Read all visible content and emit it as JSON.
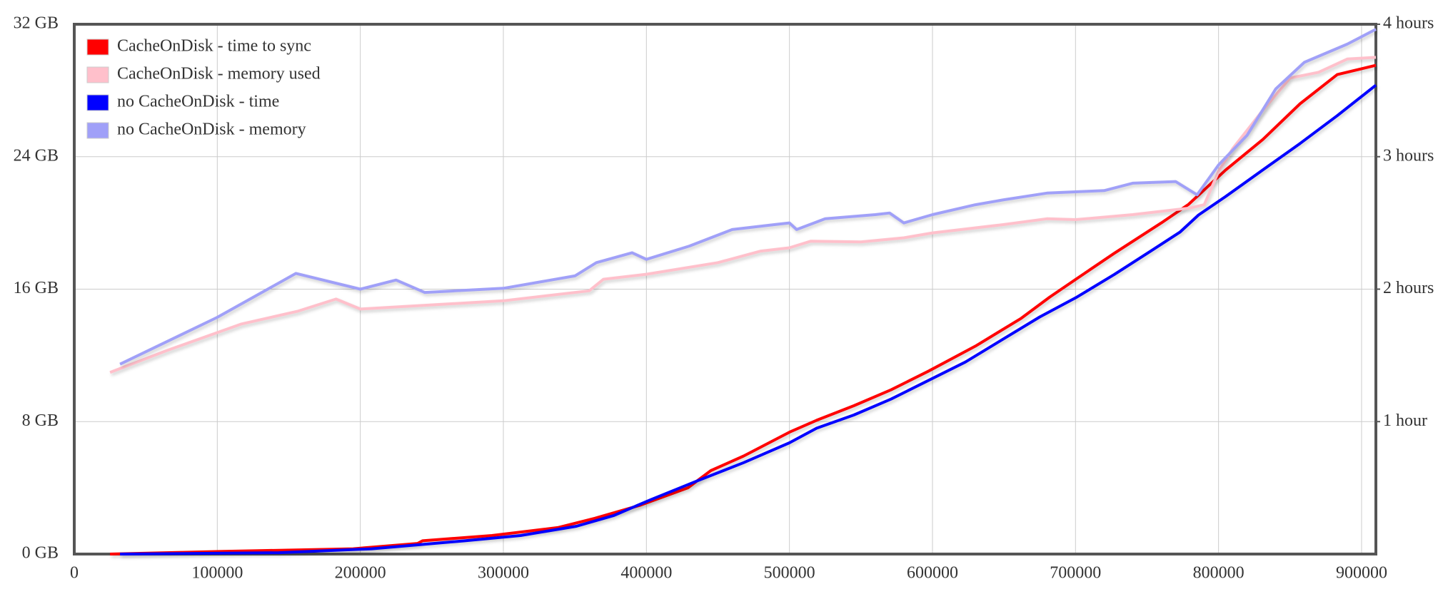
{
  "chart_data": {
    "type": "line",
    "xlim": [
      0,
      910000
    ],
    "xticks": [
      0,
      100000,
      200000,
      300000,
      400000,
      500000,
      600000,
      700000,
      800000,
      900000
    ],
    "ylim": [
      0,
      32
    ],
    "yticks": [
      {
        "value": 0,
        "label": "0 GB"
      },
      {
        "value": 8,
        "label": "8 GB"
      },
      {
        "value": 16,
        "label": "16 GB"
      },
      {
        "value": 24,
        "label": "24 GB"
      },
      {
        "value": 32,
        "label": "32 GB"
      }
    ],
    "y2lim": [
      0,
      4
    ],
    "y2ticks": [
      {
        "value": 1,
        "label": "1 hour"
      },
      {
        "value": 2,
        "label": "2 hours"
      },
      {
        "value": 3,
        "label": "3 hours"
      },
      {
        "value": 4,
        "label": "4 hours"
      }
    ],
    "grid": true,
    "legend": "upper-left",
    "series": [
      {
        "name": "CacheOnDisk - time to sync",
        "color": "#ff0000",
        "axis": "y2",
        "x": [
          25000,
          104000,
          195000,
          240000,
          243500,
          292000,
          338000,
          364000,
          396000,
          429000,
          445000,
          468000,
          500000,
          519000,
          545000,
          571000,
          597000,
          630000,
          662000,
          682000,
          701000,
          727000,
          760000,
          779000,
          805000,
          831000,
          857000,
          883000,
          910000
        ],
        "values": [
          0,
          0.02,
          0.04,
          0.08,
          0.1,
          0.14,
          0.2,
          0.27,
          0.37,
          0.5,
          0.63,
          0.74,
          0.92,
          1.01,
          1.12,
          1.24,
          1.38,
          1.57,
          1.78,
          1.94,
          2.08,
          2.27,
          2.5,
          2.64,
          2.9,
          3.13,
          3.4,
          3.62,
          3.69
        ]
      },
      {
        "name": "CacheOnDisk - memory used",
        "color": "#ffc0cb",
        "x": [
          25000,
          65000,
          117000,
          156000,
          183000,
          200000,
          300000,
          360000,
          370000,
          400000,
          450000,
          480000,
          500000,
          515000,
          550000,
          580000,
          600000,
          650000,
          680000,
          700000,
          740000,
          780000,
          790000,
          800000,
          810000,
          830000,
          850000,
          870000,
          890000,
          910000
        ],
        "values": [
          10.97,
          12.3,
          13.9,
          14.66,
          15.4,
          14.8,
          15.3,
          15.9,
          16.6,
          16.9,
          17.6,
          18.3,
          18.5,
          18.9,
          18.85,
          19.1,
          19.4,
          19.9,
          20.25,
          20.2,
          20.5,
          20.9,
          21.1,
          23.1,
          24.5,
          26.7,
          28.75,
          29.1,
          29.9,
          30.0
        ]
      },
      {
        "name": "no CacheOnDisk - time",
        "color": "#0000ff",
        "axis": "y2",
        "x": [
          32000,
          143000,
          208000,
          273000,
          312000,
          351000,
          377000,
          403000,
          435000,
          468000,
          500000,
          519000,
          545000,
          571000,
          597000,
          623000,
          649000,
          675000,
          701000,
          727000,
          753000,
          773000,
          786000,
          805000,
          831000,
          857000,
          883000,
          910000
        ],
        "values": [
          0,
          0.01,
          0.04,
          0.1,
          0.14,
          0.21,
          0.29,
          0.41,
          0.55,
          0.69,
          0.84,
          0.95,
          1.05,
          1.17,
          1.31,
          1.45,
          1.62,
          1.79,
          1.94,
          2.11,
          2.29,
          2.43,
          2.56,
          2.7,
          2.9,
          3.1,
          3.31,
          3.54
        ]
      },
      {
        "name": "no CacheOnDisk - memory",
        "color": "#a0a0f8",
        "x": [
          32000,
          100000,
          155000,
          200000,
          225000,
          245000,
          300000,
          350000,
          365000,
          390000,
          400000,
          430000,
          460000,
          490000,
          500000,
          505000,
          525000,
          560000,
          570000,
          580000,
          600000,
          630000,
          650000,
          680000,
          720000,
          740000,
          770000,
          785000,
          800000,
          820000,
          840000,
          860000,
          890000,
          910000
        ],
        "values": [
          11.47,
          14.3,
          16.95,
          16,
          16.55,
          15.8,
          16.05,
          16.8,
          17.6,
          18.2,
          17.8,
          18.6,
          19.6,
          19.9,
          20.0,
          19.6,
          20.25,
          20.5,
          20.6,
          20.0,
          20.5,
          21.1,
          21.4,
          21.8,
          21.95,
          22.4,
          22.5,
          21.7,
          23.5,
          25.3,
          28.1,
          29.7,
          30.8,
          31.7
        ]
      }
    ]
  }
}
